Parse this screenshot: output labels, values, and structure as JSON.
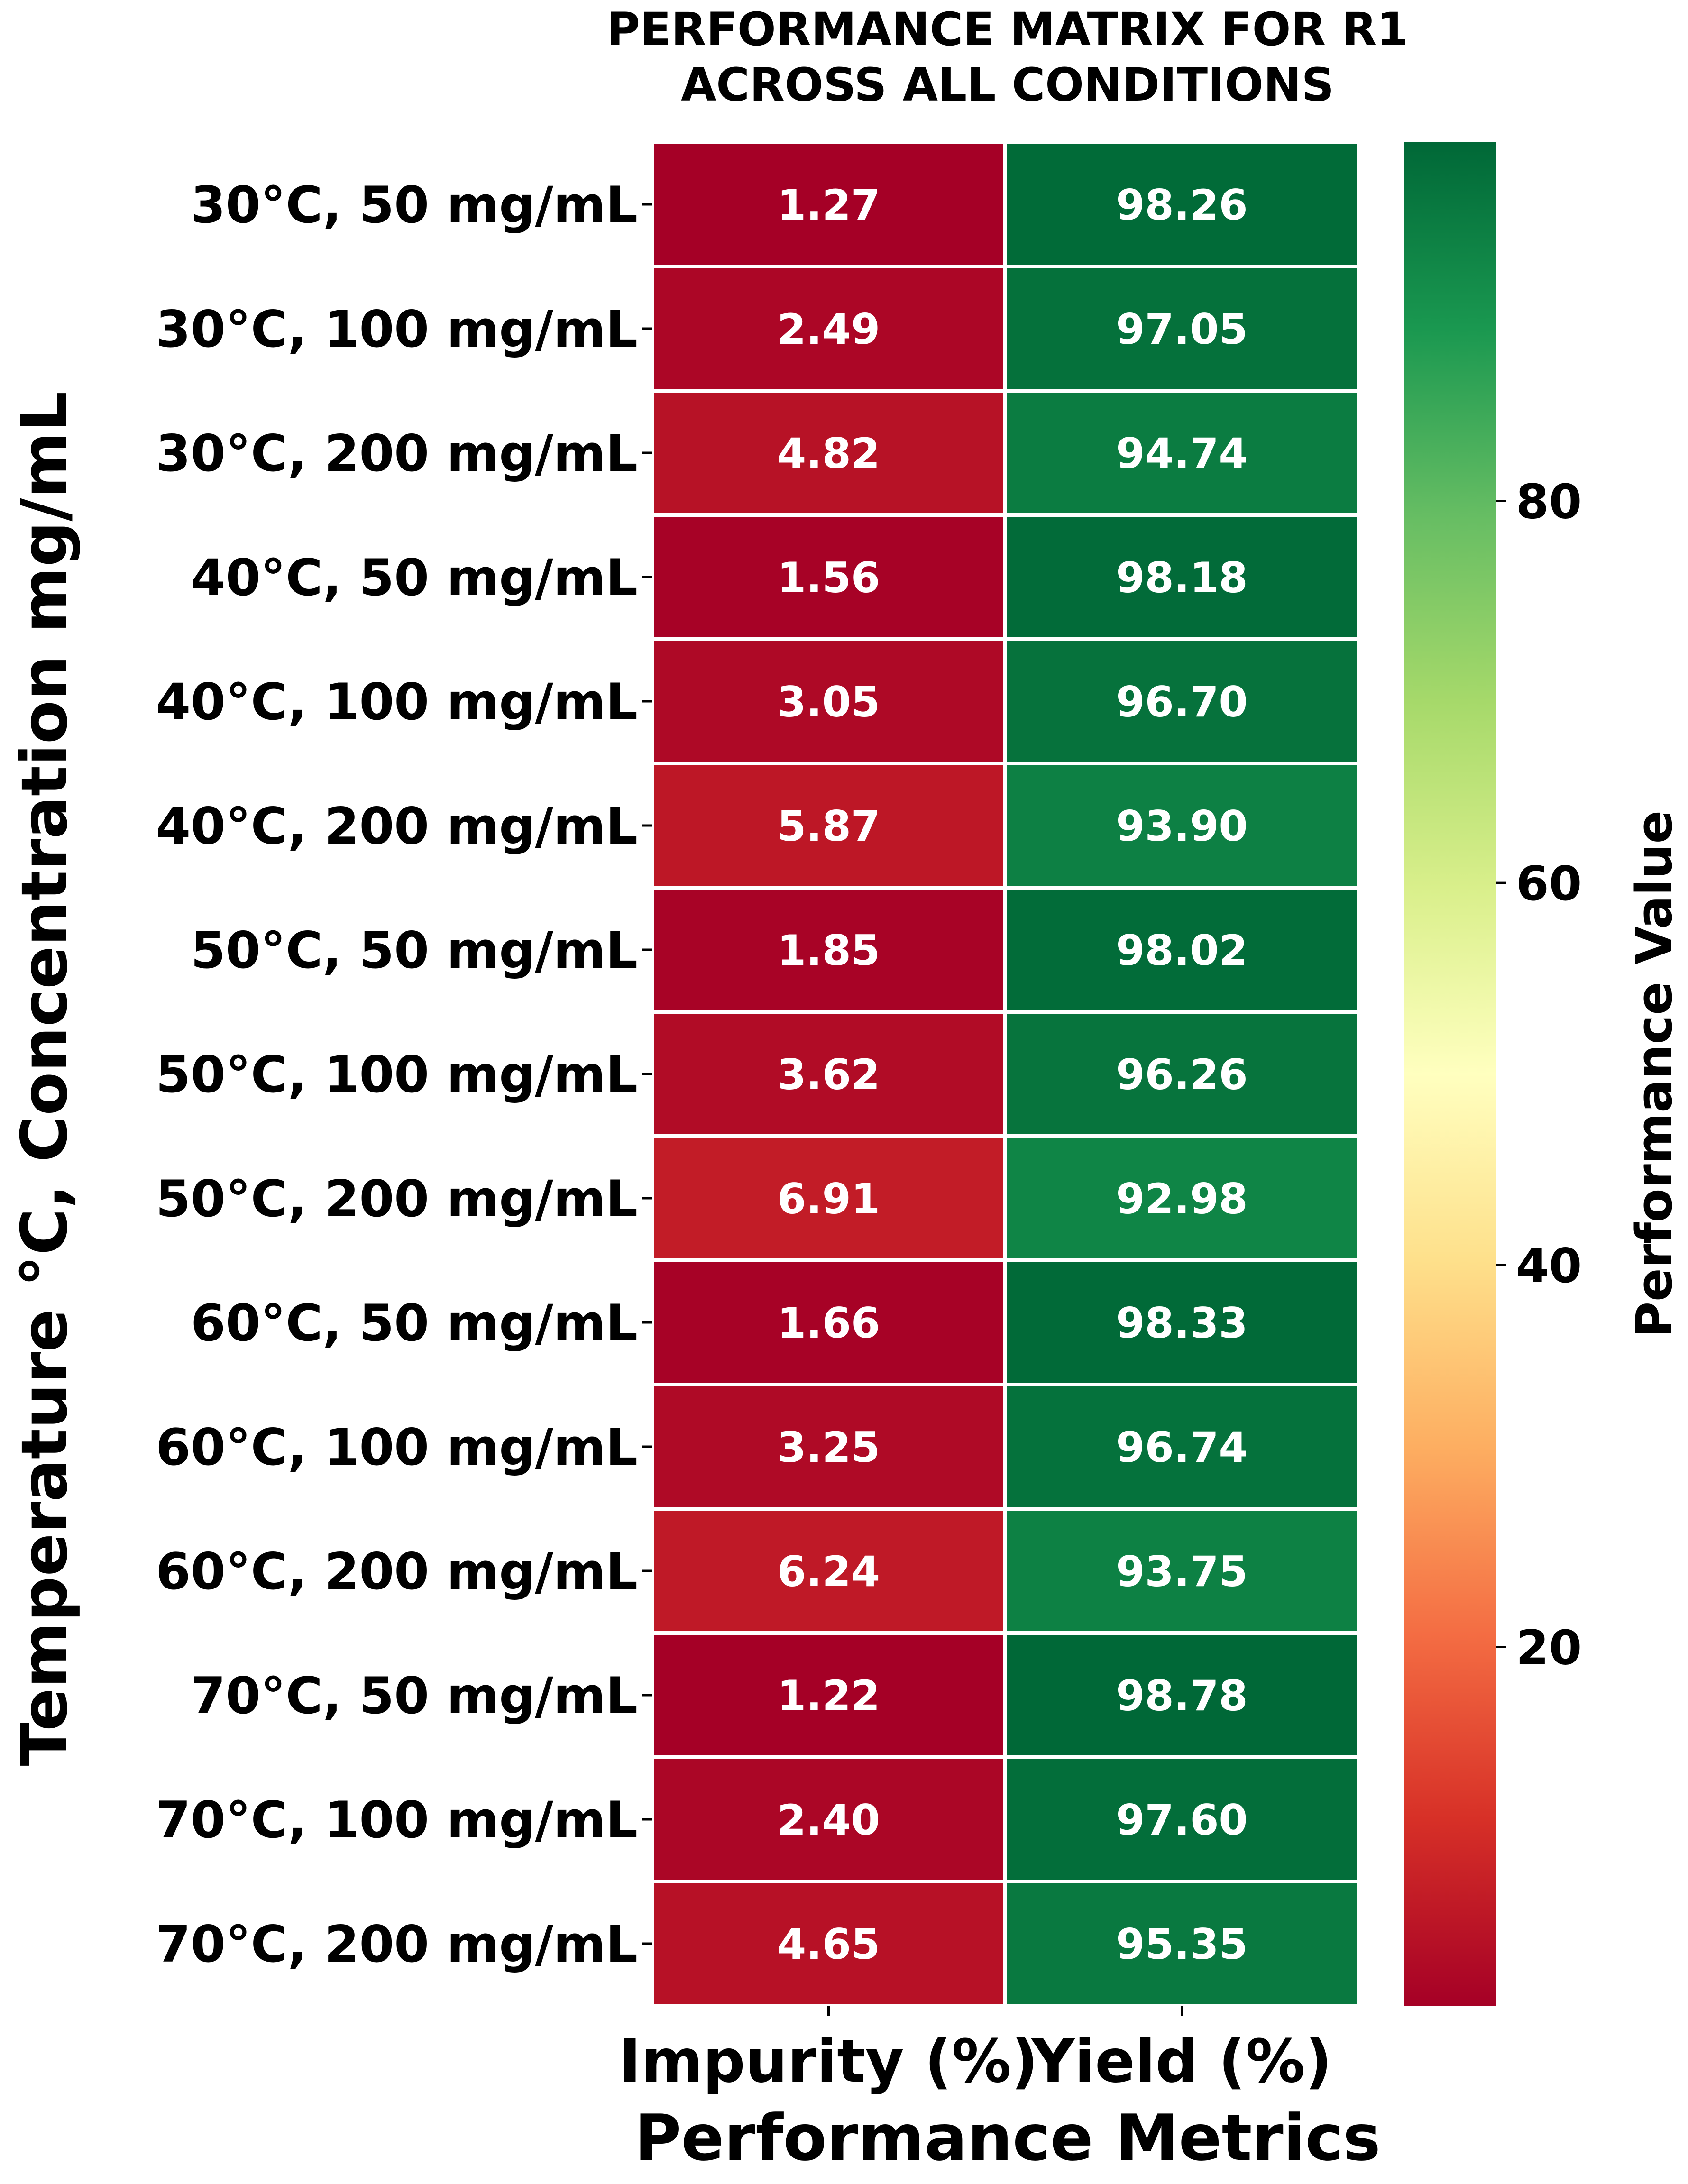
{
  "chart_data": {
    "type": "heatmap",
    "title_lines": [
      "PERFORMANCE MATRIX FOR R1",
      "ACROSS ALL CONDITIONS"
    ],
    "xlabel": "Performance Metrics",
    "ylabel": "Temperature °C, Concentration mg/mL",
    "columns": [
      "Impurity (%)",
      "Yield (%)"
    ],
    "rows": [
      "30°C, 50 mg/mL",
      "30°C, 100 mg/mL",
      "30°C, 200 mg/mL",
      "40°C, 50 mg/mL",
      "40°C, 100 mg/mL",
      "40°C, 200 mg/mL",
      "50°C, 50 mg/mL",
      "50°C, 100 mg/mL",
      "50°C, 200 mg/mL",
      "60°C, 50 mg/mL",
      "60°C, 100 mg/mL",
      "60°C, 200 mg/mL",
      "70°C, 50 mg/mL",
      "70°C, 100 mg/mL",
      "70°C, 200 mg/mL"
    ],
    "values": [
      [
        1.27,
        98.26
      ],
      [
        2.49,
        97.05
      ],
      [
        4.82,
        94.74
      ],
      [
        1.56,
        98.18
      ],
      [
        3.05,
        96.7
      ],
      [
        5.87,
        93.9
      ],
      [
        1.85,
        98.02
      ],
      [
        3.62,
        96.26
      ],
      [
        6.91,
        92.98
      ],
      [
        1.66,
        98.33
      ],
      [
        3.25,
        96.74
      ],
      [
        6.24,
        93.75
      ],
      [
        1.22,
        98.78
      ],
      [
        2.4,
        97.6
      ],
      [
        4.65,
        95.35
      ]
    ],
    "value_labels": [
      [
        "1.27",
        "98.26"
      ],
      [
        "2.49",
        "97.05"
      ],
      [
        "4.82",
        "94.74"
      ],
      [
        "1.56",
        "98.18"
      ],
      [
        "3.05",
        "96.70"
      ],
      [
        "5.87",
        "93.90"
      ],
      [
        "1.85",
        "98.02"
      ],
      [
        "3.62",
        "96.26"
      ],
      [
        "6.91",
        "92.98"
      ],
      [
        "1.66",
        "98.33"
      ],
      [
        "3.25",
        "96.74"
      ],
      [
        "6.24",
        "93.75"
      ],
      [
        "1.22",
        "98.78"
      ],
      [
        "2.40",
        "97.60"
      ],
      [
        "4.65",
        "95.35"
      ]
    ],
    "colorbar": {
      "label": "Performance Value",
      "colormap": "RdYlGn",
      "vmin": 1.22,
      "vmax": 98.78,
      "ticks": [
        20,
        40,
        60,
        80
      ],
      "tick_labels": [
        "20",
        "40",
        "60",
        "80"
      ]
    }
  }
}
